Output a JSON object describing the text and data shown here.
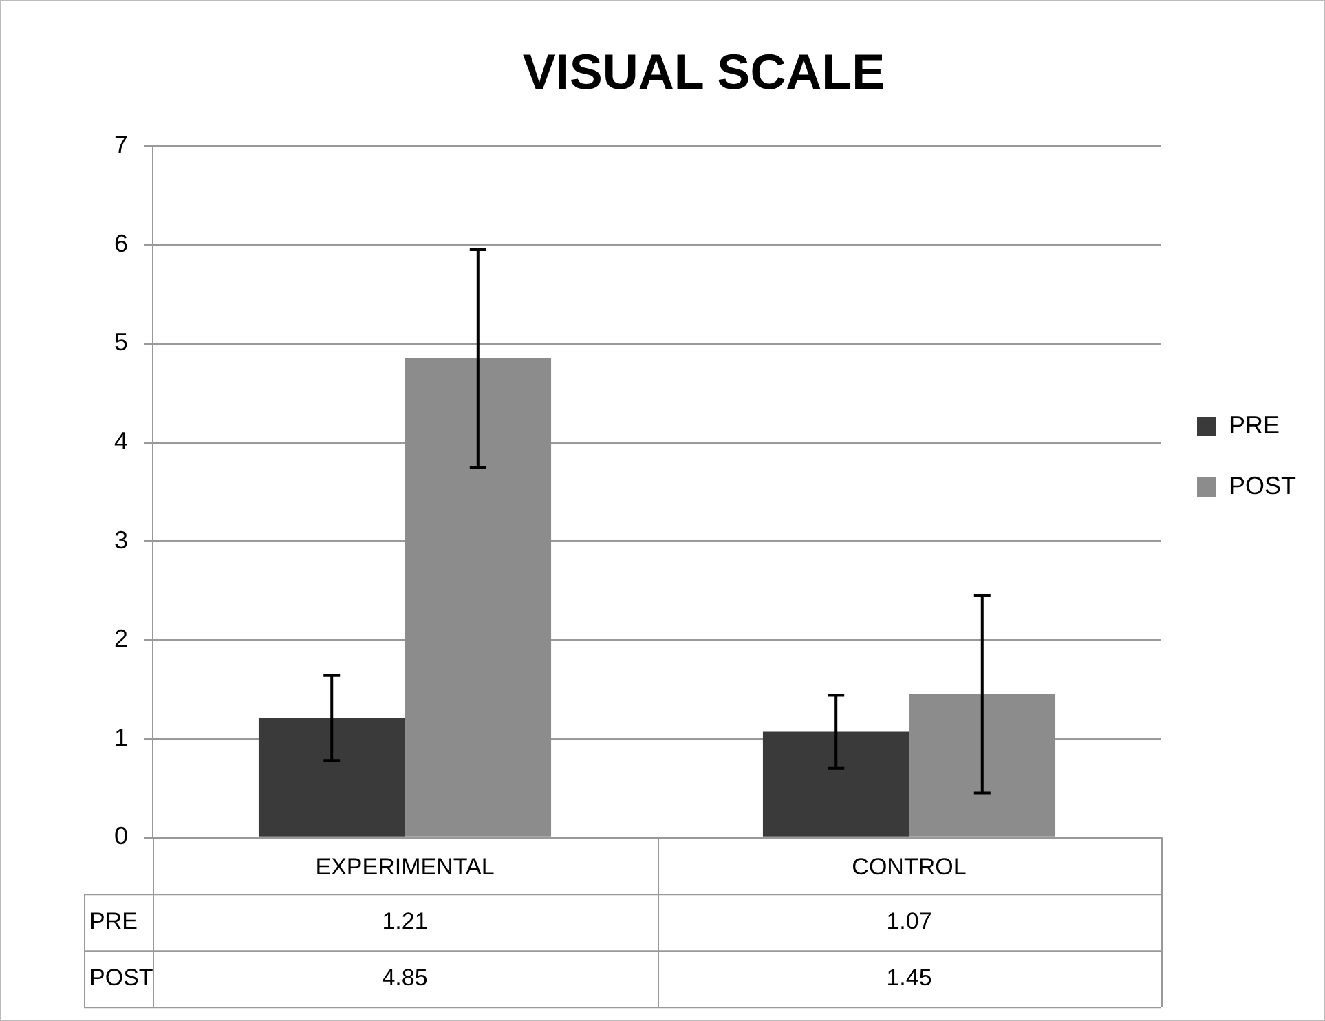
{
  "chart_data": {
    "type": "bar",
    "title": "VISUAL SCALE",
    "categories": [
      "EXPERIMENTAL",
      "CONTROL"
    ],
    "series": [
      {
        "name": "PRE",
        "color": "#3a3a3a",
        "values": [
          1.21,
          1.07
        ],
        "errors": [
          0.43,
          0.37
        ]
      },
      {
        "name": "POST",
        "color": "#8c8c8c",
        "values": [
          4.85,
          1.45
        ],
        "errors": [
          1.1,
          1.0
        ]
      }
    ],
    "ylim": [
      0,
      7
    ],
    "yticks": [
      0,
      1,
      2,
      3,
      4,
      5,
      6,
      7
    ],
    "grid": "y",
    "legend": "right",
    "data_labels": true
  }
}
